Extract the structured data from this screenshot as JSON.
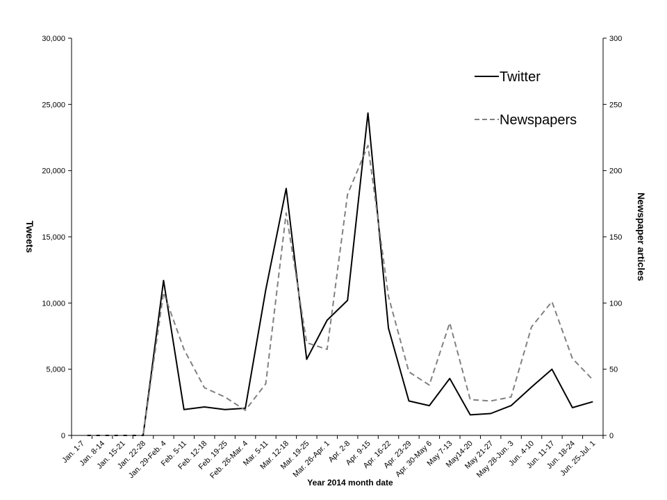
{
  "chart_data": {
    "type": "line",
    "xlabel": "Year 2014 month date",
    "ylabel": "Tweets",
    "y2label": "Newspaper articles",
    "ylim": [
      0,
      30000
    ],
    "y2lim": [
      0,
      300
    ],
    "yticks": [
      "0",
      "5,000",
      "10,000",
      "15,000",
      "20,000",
      "25,000",
      "30,000"
    ],
    "y2ticks": [
      "0",
      "50",
      "100",
      "150",
      "200",
      "250",
      "300"
    ],
    "grid": false,
    "legend_position": "top-right",
    "categories": [
      "Jan. 1-7",
      "Jan. 8-14",
      "Jan. 15-21",
      "Jan. 22-28",
      "Jan. 29-Feb. 4",
      "Feb. 5-11",
      "Feb. 12-18",
      "Feb. 19-25",
      "Feb. 26-Mar. 4",
      "Mar. 5-11",
      "Mar. 12-18",
      "Mar. 19-25",
      "Mar. 26-Apr. 1",
      "Apr. 2-8",
      "Apr. 9-15",
      "Apr. 16-22",
      "Apr. 23-29",
      "Apr. 30-May 6",
      "May 7-13",
      "May14-20",
      "May 21-27",
      "May 28-Jun. 3",
      "Jun. 4-10",
      "Jun. 11-17",
      "Jun. 18-24",
      "Jun. 25-Jul. 1"
    ],
    "series": [
      {
        "name": "Twitter",
        "axis": "left",
        "color": "#000000",
        "dash": "solid",
        "values": [
          0,
          0,
          0,
          0,
          11700,
          1950,
          2150,
          1950,
          2050,
          11000,
          18650,
          5750,
          8700,
          10200,
          24350,
          8100,
          2600,
          2250,
          4300,
          1550,
          1650,
          2250,
          3650,
          5000,
          2100,
          2550
        ]
      },
      {
        "name": "Newspapers",
        "axis": "right",
        "color": "#808080",
        "dash": "dashed",
        "values": [
          0,
          0,
          0,
          0,
          108,
          65,
          36,
          29,
          19,
          39,
          168,
          70,
          65,
          182,
          219,
          105,
          48,
          38,
          85,
          27,
          26,
          29,
          82,
          101,
          58,
          42
        ]
      }
    ]
  }
}
